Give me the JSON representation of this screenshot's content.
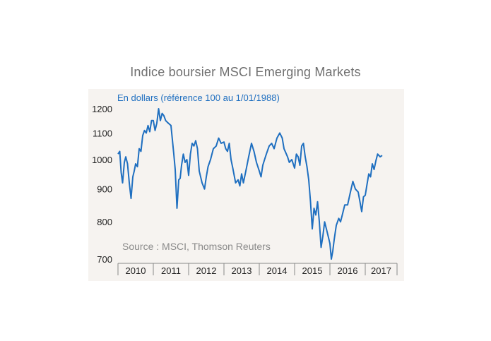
{
  "chart_data": {
    "type": "line",
    "title": "Indice boursier MSCI Emerging Markets",
    "subtitle": "En dollars (référence 100 au 1/01/1988)",
    "source": "Source : MSCI, Thomson Reuters",
    "y_scale": "log",
    "ylim": [
      700,
      1200
    ],
    "yticks": [
      700,
      800,
      900,
      1000,
      1100,
      1200
    ],
    "xlim": [
      2010.0,
      2017.9
    ],
    "xticks": [
      "2010",
      "2011",
      "2012",
      "2013",
      "2014",
      "2015",
      "2016",
      "2017"
    ],
    "grid": false,
    "line_color": "#1f6fc0",
    "series": [
      {
        "x": [
          2010.0,
          2010.05,
          2010.09,
          2010.13,
          2010.18,
          2010.22,
          2010.27,
          2010.32,
          2010.37,
          2010.42,
          2010.46,
          2010.5,
          2010.55,
          2010.6,
          2010.65,
          2010.7,
          2010.75,
          2010.8,
          2010.85,
          2010.9,
          2010.95,
          2011.0,
          2011.05,
          2011.1,
          2011.15,
          2011.2,
          2011.25,
          2011.3,
          2011.35,
          2011.42,
          2011.5,
          2011.58,
          2011.62,
          2011.67,
          2011.72,
          2011.76,
          2011.8,
          2011.85,
          2011.9,
          2011.95,
          2012.0,
          2012.05,
          2012.1,
          2012.15,
          2012.2,
          2012.25,
          2012.3,
          2012.38,
          2012.45,
          2012.5,
          2012.55,
          2012.62,
          2012.7,
          2012.78,
          2012.85,
          2012.92,
          2013.0,
          2013.05,
          2013.1,
          2013.15,
          2013.2,
          2013.25,
          2013.33,
          2013.4,
          2013.45,
          2013.5,
          2013.55,
          2013.62,
          2013.7,
          2013.78,
          2013.85,
          2013.92,
          2014.0,
          2014.05,
          2014.1,
          2014.15,
          2014.2,
          2014.28,
          2014.35,
          2014.42,
          2014.5,
          2014.58,
          2014.65,
          2014.7,
          2014.75,
          2014.8,
          2014.85,
          2014.92,
          2015.0,
          2015.05,
          2015.1,
          2015.15,
          2015.2,
          2015.25,
          2015.3,
          2015.35,
          2015.4,
          2015.45,
          2015.5,
          2015.55,
          2015.6,
          2015.65,
          2015.7,
          2015.75,
          2015.8,
          2015.85,
          2015.9,
          2015.95,
          2016.0,
          2016.04,
          2016.08,
          2016.12,
          2016.18,
          2016.25,
          2016.3,
          2016.35,
          2016.42,
          2016.5,
          2016.58,
          2016.65,
          2016.72,
          2016.8,
          2016.85,
          2016.9,
          2016.95,
          2017.0,
          2017.05,
          2017.1,
          2017.15,
          2017.2,
          2017.25,
          2017.3,
          2017.35,
          2017.42,
          2017.48
        ],
        "y": [
          1020,
          1030,
          955,
          920,
          990,
          1010,
          985,
          920,
          870,
          940,
          960,
          985,
          975,
          1040,
          1030,
          1090,
          1110,
          1100,
          1130,
          1105,
          1150,
          1150,
          1110,
          1140,
          1200,
          1150,
          1180,
          1170,
          1150,
          1140,
          1130,
          1020,
          965,
          840,
          930,
          935,
          980,
          1020,
          990,
          1000,
          945,
          1020,
          1060,
          1050,
          1070,
          1040,
          960,
          920,
          900,
          940,
          975,
          1000,
          1040,
          1050,
          1080,
          1060,
          1065,
          1040,
          1030,
          1060,
          1000,
          970,
          920,
          930,
          910,
          950,
          920,
          960,
          1010,
          1060,
          1030,
          990,
          960,
          940,
          980,
          1000,
          1020,
          1050,
          1060,
          1040,
          1080,
          1100,
          1080,
          1040,
          1025,
          1010,
          990,
          1000,
          970,
          1020,
          1010,
          980,
          1050,
          1060,
          1010,
          975,
          930,
          860,
          780,
          840,
          820,
          860,
          800,
          730,
          760,
          800,
          780,
          760,
          740,
          700,
          720,
          750,
          790,
          810,
          800,
          820,
          850,
          850,
          890,
          925,
          900,
          890,
          860,
          830,
          875,
          880,
          915,
          950,
          940,
          985,
          965,
          995,
          1020,
          1010,
          1015
        ]
      }
    ]
  }
}
